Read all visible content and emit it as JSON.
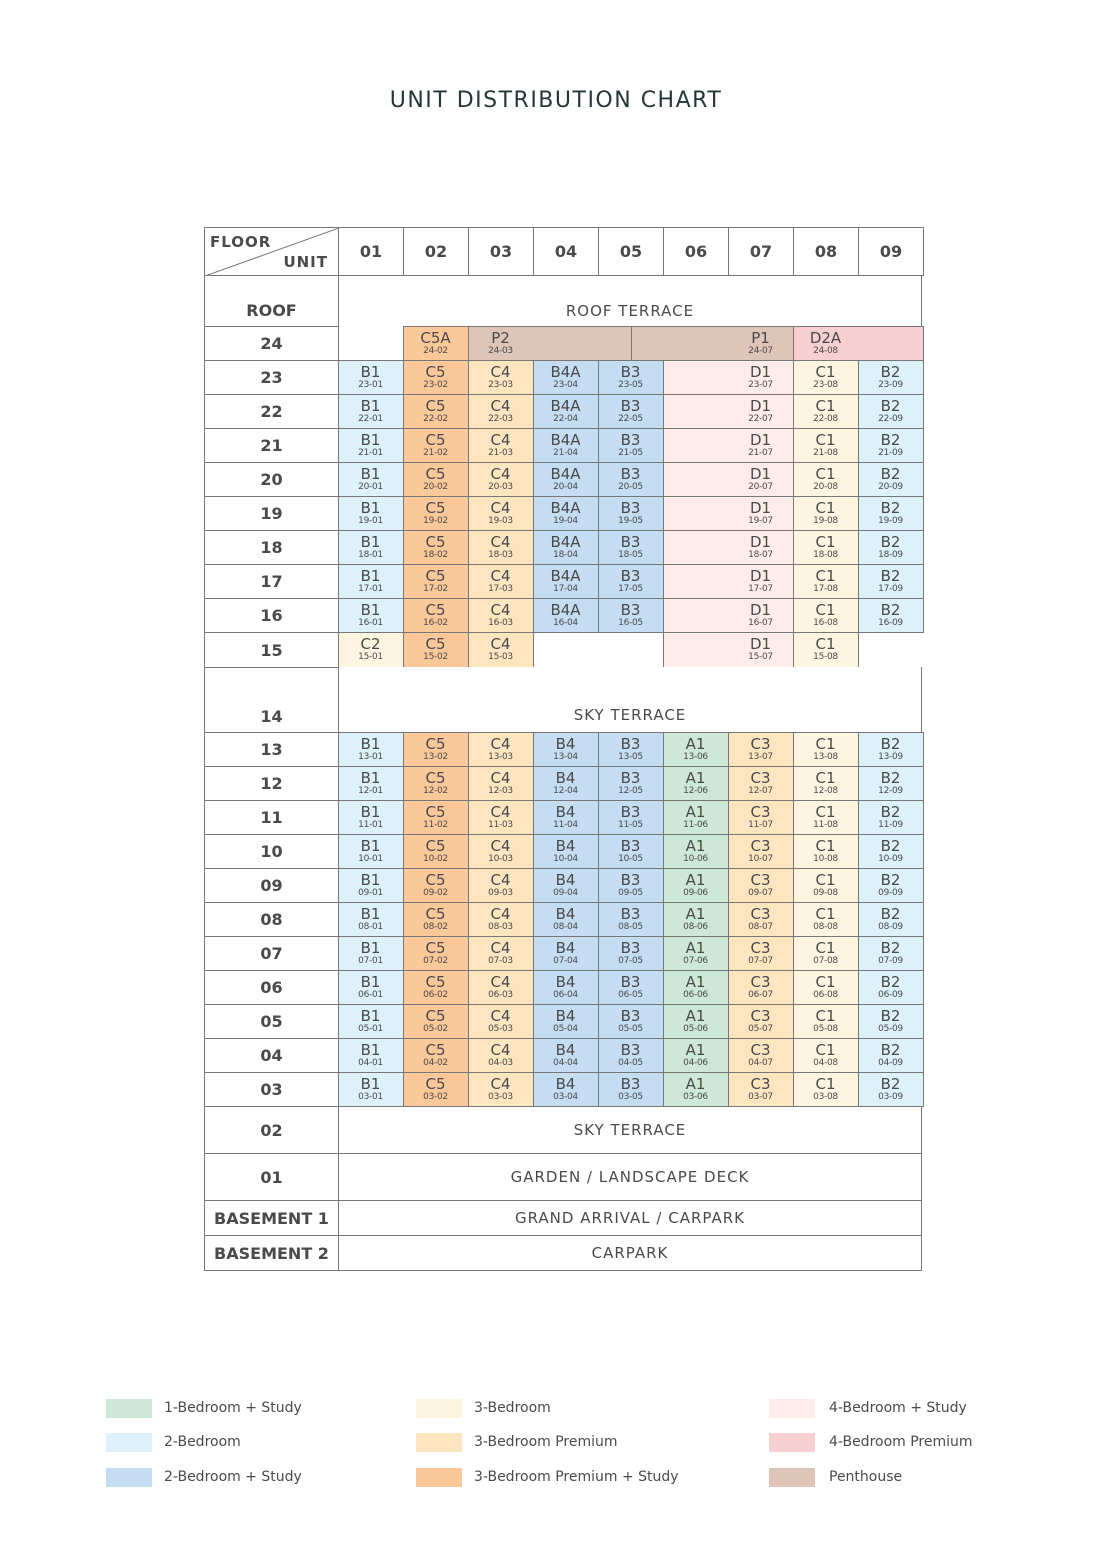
{
  "title": "UNIT DISTRIBUTION CHART",
  "header": {
    "floor_label": "FLOOR",
    "unit_label": "UNIT",
    "columns": [
      "01",
      "02",
      "03",
      "04",
      "05",
      "06",
      "07",
      "08",
      "09"
    ]
  },
  "legend": [
    {
      "key": "1BS",
      "label": "1-Bedroom + Study",
      "color": "#cde8d6"
    },
    {
      "key": "2B",
      "label": "2-Bedroom",
      "color": "#ddf1fa"
    },
    {
      "key": "2BS",
      "label": "2-Bedroom + Study",
      "color": "#c4ddf2"
    },
    {
      "key": "3B",
      "label": "3-Bedroom",
      "color": "#fef5e0"
    },
    {
      "key": "3BP",
      "label": "3-Bedroom Premium",
      "color": "#fde5c0"
    },
    {
      "key": "3BPS",
      "label": "3-Bedroom Premium + Study",
      "color": "#fbc89a"
    },
    {
      "key": "4BS",
      "label": "4-Bedroom + Study",
      "color": "#fdecea"
    },
    {
      "key": "4BP",
      "label": "4-Bedroom Premium",
      "color": "#f6d0d0"
    },
    {
      "key": "PH",
      "label": "Penthouse",
      "color": "#dec5b8"
    }
  ],
  "floors": [
    {
      "floor": "ROOF",
      "label": "ROOF TERRACE"
    },
    {
      "floor": "24",
      "units": [
        [
          null,
          null,
          null,
          1
        ],
        [
          "C5A",
          "24-02",
          "3BPS"
        ],
        [
          "P2",
          "24-03",
          "PH",
          2.5
        ],
        [
          "P1",
          "24-07",
          "PH",
          2.5
        ],
        [
          "D2A",
          "24-08",
          "4BP",
          2
        ]
      ]
    },
    {
      "floor": "23",
      "units": [
        [
          "B1",
          "23-01",
          "2B"
        ],
        [
          "C5",
          "23-02",
          "3BPS"
        ],
        [
          "C4",
          "23-03",
          "3BP"
        ],
        [
          "B4A",
          "23-04",
          "2BS"
        ],
        [
          "B3",
          "23-05",
          "2BS"
        ],
        [
          "D1",
          "23-07",
          "4BS",
          2
        ],
        [
          "C1",
          "23-08",
          "3B"
        ],
        [
          "B2",
          "23-09",
          "2B"
        ]
      ]
    },
    {
      "floor": "22",
      "units": [
        [
          "B1",
          "22-01",
          "2B"
        ],
        [
          "C5",
          "22-02",
          "3BPS"
        ],
        [
          "C4",
          "22-03",
          "3BP"
        ],
        [
          "B4A",
          "22-04",
          "2BS"
        ],
        [
          "B3",
          "22-05",
          "2BS"
        ],
        [
          "D1",
          "22-07",
          "4BS",
          2
        ],
        [
          "C1",
          "22-08",
          "3B"
        ],
        [
          "B2",
          "22-09",
          "2B"
        ]
      ]
    },
    {
      "floor": "21",
      "units": [
        [
          "B1",
          "21-01",
          "2B"
        ],
        [
          "C5",
          "21-02",
          "3BPS"
        ],
        [
          "C4",
          "21-03",
          "3BP"
        ],
        [
          "B4A",
          "21-04",
          "2BS"
        ],
        [
          "B3",
          "21-05",
          "2BS"
        ],
        [
          "D1",
          "21-07",
          "4BS",
          2
        ],
        [
          "C1",
          "21-08",
          "3B"
        ],
        [
          "B2",
          "21-09",
          "2B"
        ]
      ]
    },
    {
      "floor": "20",
      "units": [
        [
          "B1",
          "20-01",
          "2B"
        ],
        [
          "C5",
          "20-02",
          "3BPS"
        ],
        [
          "C4",
          "20-03",
          "3BP"
        ],
        [
          "B4A",
          "20-04",
          "2BS"
        ],
        [
          "B3",
          "20-05",
          "2BS"
        ],
        [
          "D1",
          "20-07",
          "4BS",
          2
        ],
        [
          "C1",
          "20-08",
          "3B"
        ],
        [
          "B2",
          "20-09",
          "2B"
        ]
      ]
    },
    {
      "floor": "19",
      "units": [
        [
          "B1",
          "19-01",
          "2B"
        ],
        [
          "C5",
          "19-02",
          "3BPS"
        ],
        [
          "C4",
          "19-03",
          "3BP"
        ],
        [
          "B4A",
          "19-04",
          "2BS"
        ],
        [
          "B3",
          "19-05",
          "2BS"
        ],
        [
          "D1",
          "19-07",
          "4BS",
          2
        ],
        [
          "C1",
          "19-08",
          "3B"
        ],
        [
          "B2",
          "19-09",
          "2B"
        ]
      ]
    },
    {
      "floor": "18",
      "units": [
        [
          "B1",
          "18-01",
          "2B"
        ],
        [
          "C5",
          "18-02",
          "3BPS"
        ],
        [
          "C4",
          "18-03",
          "3BP"
        ],
        [
          "B4A",
          "18-04",
          "2BS"
        ],
        [
          "B3",
          "18-05",
          "2BS"
        ],
        [
          "D1",
          "18-07",
          "4BS",
          2
        ],
        [
          "C1",
          "18-08",
          "3B"
        ],
        [
          "B2",
          "18-09",
          "2B"
        ]
      ]
    },
    {
      "floor": "17",
      "units": [
        [
          "B1",
          "17-01",
          "2B"
        ],
        [
          "C5",
          "17-02",
          "3BPS"
        ],
        [
          "C4",
          "17-03",
          "3BP"
        ],
        [
          "B4A",
          "17-04",
          "2BS"
        ],
        [
          "B3",
          "17-05",
          "2BS"
        ],
        [
          "D1",
          "17-07",
          "4BS",
          2
        ],
        [
          "C1",
          "17-08",
          "3B"
        ],
        [
          "B2",
          "17-09",
          "2B"
        ]
      ]
    },
    {
      "floor": "16",
      "units": [
        [
          "B1",
          "16-01",
          "2B"
        ],
        [
          "C5",
          "16-02",
          "3BPS"
        ],
        [
          "C4",
          "16-03",
          "3BP"
        ],
        [
          "B4A",
          "16-04",
          "2BS"
        ],
        [
          "B3",
          "16-05",
          "2BS"
        ],
        [
          "D1",
          "16-07",
          "4BS",
          2
        ],
        [
          "C1",
          "16-08",
          "3B"
        ],
        [
          "B2",
          "16-09",
          "2B"
        ]
      ]
    },
    {
      "floor": "15",
      "units": [
        [
          "C2",
          "15-01",
          "3B"
        ],
        [
          "C5",
          "15-02",
          "3BPS"
        ],
        [
          "C4",
          "15-03",
          "3BP"
        ],
        [
          null,
          null,
          null,
          2
        ],
        [
          "D1",
          "15-07",
          "4BS",
          2
        ],
        [
          "C1",
          "15-08",
          "3B"
        ],
        [
          null,
          null,
          null,
          1
        ]
      ]
    },
    {
      "floor": "14",
      "label": "SKY TERRACE"
    },
    {
      "floor": "13",
      "units": [
        [
          "B1",
          "13-01",
          "2B"
        ],
        [
          "C5",
          "13-02",
          "3BPS"
        ],
        [
          "C4",
          "13-03",
          "3BP"
        ],
        [
          "B4",
          "13-04",
          "2BS"
        ],
        [
          "B3",
          "13-05",
          "2BS"
        ],
        [
          "A1",
          "13-06",
          "1BS"
        ],
        [
          "C3",
          "13-07",
          "3BP"
        ],
        [
          "C1",
          "13-08",
          "3B"
        ],
        [
          "B2",
          "13-09",
          "2B"
        ]
      ]
    },
    {
      "floor": "12",
      "units": [
        [
          "B1",
          "12-01",
          "2B"
        ],
        [
          "C5",
          "12-02",
          "3BPS"
        ],
        [
          "C4",
          "12-03",
          "3BP"
        ],
        [
          "B4",
          "12-04",
          "2BS"
        ],
        [
          "B3",
          "12-05",
          "2BS"
        ],
        [
          "A1",
          "12-06",
          "1BS"
        ],
        [
          "C3",
          "12-07",
          "3BP"
        ],
        [
          "C1",
          "12-08",
          "3B"
        ],
        [
          "B2",
          "12-09",
          "2B"
        ]
      ]
    },
    {
      "floor": "11",
      "units": [
        [
          "B1",
          "11-01",
          "2B"
        ],
        [
          "C5",
          "11-02",
          "3BPS"
        ],
        [
          "C4",
          "11-03",
          "3BP"
        ],
        [
          "B4",
          "11-04",
          "2BS"
        ],
        [
          "B3",
          "11-05",
          "2BS"
        ],
        [
          "A1",
          "11-06",
          "1BS"
        ],
        [
          "C3",
          "11-07",
          "3BP"
        ],
        [
          "C1",
          "11-08",
          "3B"
        ],
        [
          "B2",
          "11-09",
          "2B"
        ]
      ]
    },
    {
      "floor": "10",
      "units": [
        [
          "B1",
          "10-01",
          "2B"
        ],
        [
          "C5",
          "10-02",
          "3BPS"
        ],
        [
          "C4",
          "10-03",
          "3BP"
        ],
        [
          "B4",
          "10-04",
          "2BS"
        ],
        [
          "B3",
          "10-05",
          "2BS"
        ],
        [
          "A1",
          "10-06",
          "1BS"
        ],
        [
          "C3",
          "10-07",
          "3BP"
        ],
        [
          "C1",
          "10-08",
          "3B"
        ],
        [
          "B2",
          "10-09",
          "2B"
        ]
      ]
    },
    {
      "floor": "09",
      "units": [
        [
          "B1",
          "09-01",
          "2B"
        ],
        [
          "C5",
          "09-02",
          "3BPS"
        ],
        [
          "C4",
          "09-03",
          "3BP"
        ],
        [
          "B4",
          "09-04",
          "2BS"
        ],
        [
          "B3",
          "09-05",
          "2BS"
        ],
        [
          "A1",
          "09-06",
          "1BS"
        ],
        [
          "C3",
          "09-07",
          "3BP"
        ],
        [
          "C1",
          "09-08",
          "3B"
        ],
        [
          "B2",
          "09-09",
          "2B"
        ]
      ]
    },
    {
      "floor": "08",
      "units": [
        [
          "B1",
          "08-01",
          "2B"
        ],
        [
          "C5",
          "08-02",
          "3BPS"
        ],
        [
          "C4",
          "08-03",
          "3BP"
        ],
        [
          "B4",
          "08-04",
          "2BS"
        ],
        [
          "B3",
          "08-05",
          "2BS"
        ],
        [
          "A1",
          "08-06",
          "1BS"
        ],
        [
          "C3",
          "08-07",
          "3BP"
        ],
        [
          "C1",
          "08-08",
          "3B"
        ],
        [
          "B2",
          "08-09",
          "2B"
        ]
      ]
    },
    {
      "floor": "07",
      "units": [
        [
          "B1",
          "07-01",
          "2B"
        ],
        [
          "C5",
          "07-02",
          "3BPS"
        ],
        [
          "C4",
          "07-03",
          "3BP"
        ],
        [
          "B4",
          "07-04",
          "2BS"
        ],
        [
          "B3",
          "07-05",
          "2BS"
        ],
        [
          "A1",
          "07-06",
          "1BS"
        ],
        [
          "C3",
          "07-07",
          "3BP"
        ],
        [
          "C1",
          "07-08",
          "3B"
        ],
        [
          "B2",
          "07-09",
          "2B"
        ]
      ]
    },
    {
      "floor": "06",
      "units": [
        [
          "B1",
          "06-01",
          "2B"
        ],
        [
          "C5",
          "06-02",
          "3BPS"
        ],
        [
          "C4",
          "06-03",
          "3BP"
        ],
        [
          "B4",
          "06-04",
          "2BS"
        ],
        [
          "B3",
          "06-05",
          "2BS"
        ],
        [
          "A1",
          "06-06",
          "1BS"
        ],
        [
          "C3",
          "06-07",
          "3BP"
        ],
        [
          "C1",
          "06-08",
          "3B"
        ],
        [
          "B2",
          "06-09",
          "2B"
        ]
      ]
    },
    {
      "floor": "05",
      "units": [
        [
          "B1",
          "05-01",
          "2B"
        ],
        [
          "C5",
          "05-02",
          "3BPS"
        ],
        [
          "C4",
          "05-03",
          "3BP"
        ],
        [
          "B4",
          "05-04",
          "2BS"
        ],
        [
          "B3",
          "05-05",
          "2BS"
        ],
        [
          "A1",
          "05-06",
          "1BS"
        ],
        [
          "C3",
          "05-07",
          "3BP"
        ],
        [
          "C1",
          "05-08",
          "3B"
        ],
        [
          "B2",
          "05-09",
          "2B"
        ]
      ]
    },
    {
      "floor": "04",
      "units": [
        [
          "B1",
          "04-01",
          "2B"
        ],
        [
          "C5",
          "04-02",
          "3BPS"
        ],
        [
          "C4",
          "04-03",
          "3BP"
        ],
        [
          "B4",
          "04-04",
          "2BS"
        ],
        [
          "B3",
          "04-05",
          "2BS"
        ],
        [
          "A1",
          "04-06",
          "1BS"
        ],
        [
          "C3",
          "04-07",
          "3BP"
        ],
        [
          "C1",
          "04-08",
          "3B"
        ],
        [
          "B2",
          "04-09",
          "2B"
        ]
      ]
    },
    {
      "floor": "03",
      "units": [
        [
          "B1",
          "03-01",
          "2B"
        ],
        [
          "C5",
          "03-02",
          "3BPS"
        ],
        [
          "C4",
          "03-03",
          "3BP"
        ],
        [
          "B4",
          "03-04",
          "2BS"
        ],
        [
          "B3",
          "03-05",
          "2BS"
        ],
        [
          "A1",
          "03-06",
          "1BS"
        ],
        [
          "C3",
          "03-07",
          "3BP"
        ],
        [
          "C1",
          "03-08",
          "3B"
        ],
        [
          "B2",
          "03-09",
          "2B"
        ]
      ]
    },
    {
      "floor": "02",
      "label": "SKY TERRACE"
    },
    {
      "floor": "01",
      "label": "GARDEN / LANDSCAPE DECK"
    },
    {
      "floor": "BASEMENT 1",
      "label": "GRAND ARRIVAL / CARPARK"
    },
    {
      "floor": "BASEMENT 2",
      "label": "CARPARK"
    }
  ]
}
